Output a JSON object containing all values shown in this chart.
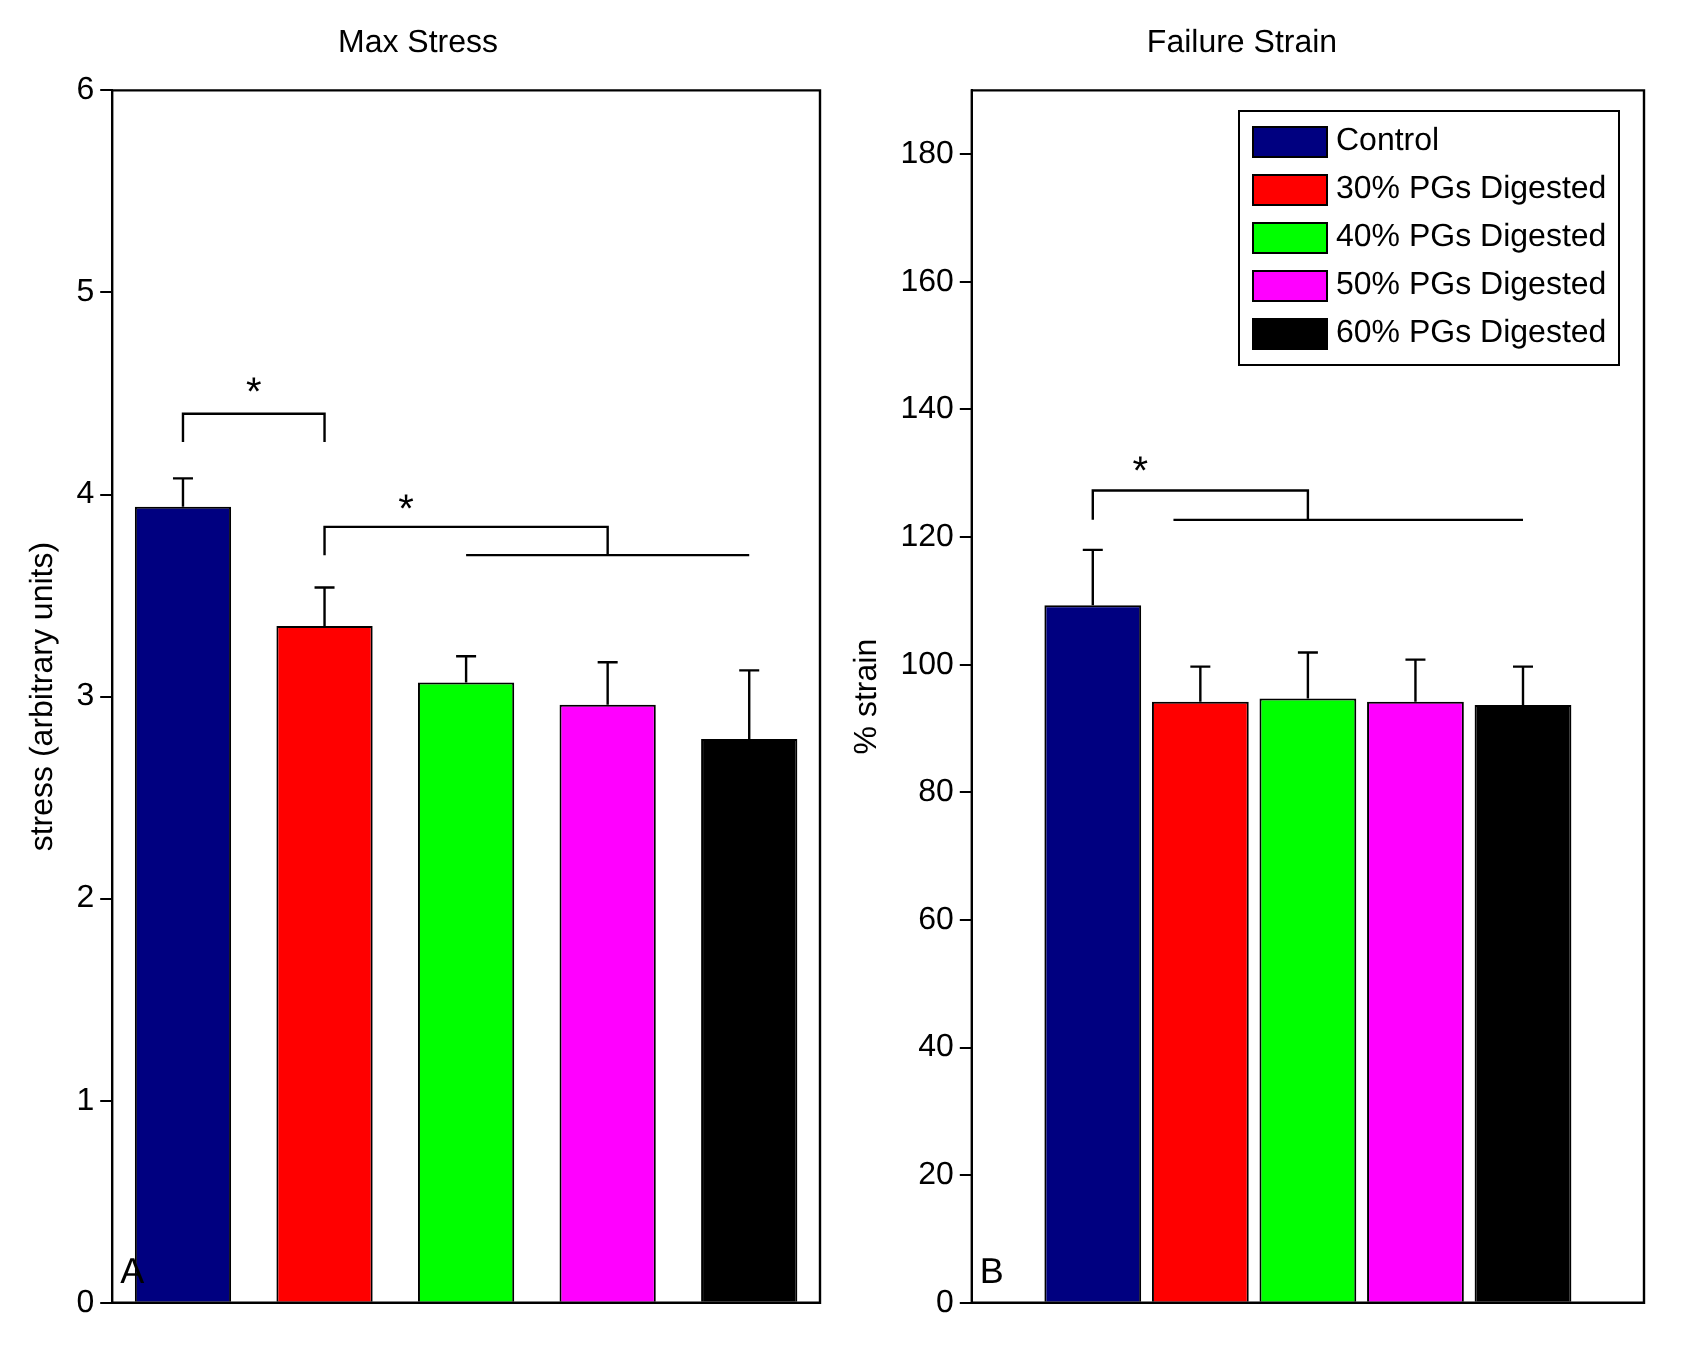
{
  "chart_data": [
    {
      "type": "bar",
      "title": "Max Stress",
      "ylabel": "stress (arbitrary units)",
      "categories": [
        null,
        null,
        null,
        null,
        null
      ],
      "values": [
        3.94,
        3.35,
        3.07,
        2.96,
        2.79
      ],
      "colors": [
        "#000080",
        "#ff0000",
        "#00ff00",
        "#ff00ff",
        "#000000"
      ],
      "errors": [
        0.14,
        0.19,
        0.13,
        0.21,
        0.34
      ],
      "ylim": [
        0,
        6
      ],
      "yticks": [
        0,
        1,
        2,
        3,
        4,
        5,
        6
      ],
      "grid": false,
      "legend": false,
      "annotations": [
        "A",
        "*",
        "*"
      ]
    },
    {
      "type": "bar",
      "title": "Failure Strain",
      "ylabel": "% strain",
      "categories": [
        null
      ],
      "series": [
        {
          "name": "Control",
          "color": "#000080",
          "values": [
            109.3
          ],
          "errors": [
            8.7
          ]
        },
        {
          "name": "30% PGs Digested",
          "color": "#ff0000",
          "values": [
            94.2
          ],
          "errors": [
            5.5
          ]
        },
        {
          "name": "40% PGs Digested",
          "color": "#00ff00",
          "values": [
            94.7
          ],
          "errors": [
            7.2
          ]
        },
        {
          "name": "50% PGs Digested",
          "color": "#ff00ff",
          "values": [
            94.2
          ],
          "errors": [
            6.6
          ]
        },
        {
          "name": "60% PGs Digested",
          "color": "#000000",
          "values": [
            93.7
          ],
          "errors": [
            6
          ]
        }
      ],
      "ylim": [
        0,
        190
      ],
      "yticks": [
        0,
        20,
        40,
        60,
        80,
        100,
        120,
        140,
        160,
        180
      ],
      "grid": false,
      "legend": "top right",
      "annotations": [
        "B",
        "*"
      ]
    }
  ]
}
